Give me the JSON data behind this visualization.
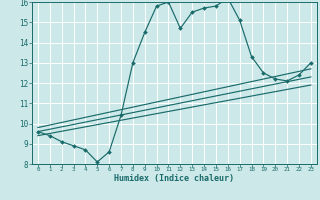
{
  "xlabel": "Humidex (Indice chaleur)",
  "bg_color": "#cce8e8",
  "grid_color": "#ffffff",
  "line_color": "#1a6b6b",
  "xlim": [
    -0.5,
    23.5
  ],
  "ylim": [
    8,
    16
  ],
  "xticks": [
    0,
    1,
    2,
    3,
    4,
    5,
    6,
    7,
    8,
    9,
    10,
    11,
    12,
    13,
    14,
    15,
    16,
    17,
    18,
    19,
    20,
    21,
    22,
    23
  ],
  "yticks": [
    8,
    9,
    10,
    11,
    12,
    13,
    14,
    15,
    16
  ],
  "main_data": {
    "x": [
      0,
      1,
      2,
      3,
      4,
      5,
      6,
      7,
      8,
      9,
      10,
      11,
      12,
      13,
      14,
      15,
      16,
      17,
      18,
      19,
      20,
      21,
      22,
      23
    ],
    "y": [
      9.6,
      9.4,
      9.1,
      8.9,
      8.7,
      8.1,
      8.6,
      10.4,
      13.0,
      14.5,
      15.8,
      16.0,
      14.7,
      15.5,
      15.7,
      15.8,
      16.2,
      15.1,
      13.3,
      12.5,
      12.2,
      12.1,
      12.4,
      13.0
    ]
  },
  "reg_lines": [
    {
      "x": [
        0,
        23
      ],
      "y": [
        9.4,
        11.9
      ]
    },
    {
      "x": [
        0,
        23
      ],
      "y": [
        9.6,
        12.3
      ]
    },
    {
      "x": [
        0,
        23
      ],
      "y": [
        9.8,
        12.7
      ]
    }
  ]
}
